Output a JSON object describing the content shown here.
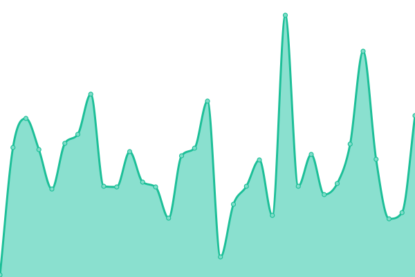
{
  "chart_data": {
    "type": "area",
    "title": "",
    "xlabel": "",
    "ylabel": "",
    "x": [
      0,
      1,
      2,
      3,
      4,
      5,
      6,
      7,
      8,
      9,
      10,
      11,
      12,
      13,
      14,
      15,
      16,
      17,
      18,
      19,
      20,
      21,
      22,
      23,
      24,
      25,
      26,
      27,
      28,
      29,
      30,
      31,
      32
    ],
    "values": [
      3,
      187,
      229,
      184,
      127,
      193,
      206,
      264,
      131,
      130,
      181,
      137,
      130,
      85,
      175,
      186,
      254,
      29,
      105,
      131,
      169,
      89,
      378,
      131,
      177,
      119,
      135,
      192,
      326,
      170,
      84,
      93,
      233
    ],
    "ylim": [
      0,
      400
    ],
    "grid": false,
    "axes_visible": false,
    "curve": "smooth",
    "markers": true,
    "colors": {
      "line": "#1dbf98",
      "fill": "#8ae0cf",
      "marker_fill": "#7fdcc8"
    }
  }
}
